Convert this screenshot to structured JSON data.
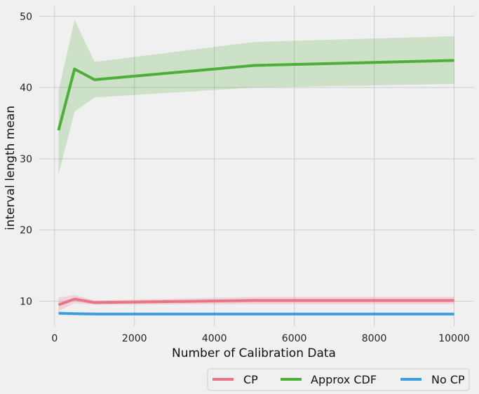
{
  "chart_data": {
    "type": "line",
    "title": "",
    "xlabel": "Number of Calibration Data",
    "ylabel": "interval length mean",
    "xlim": [
      -400,
      10500
    ],
    "ylim": [
      6.5,
      51.5
    ],
    "xticks": [
      0,
      2000,
      4000,
      6000,
      8000,
      10000
    ],
    "xtick_labels": [
      "0",
      "2000",
      "4000",
      "6000",
      "8000",
      "10000"
    ],
    "yticks": [
      10,
      20,
      30,
      40,
      50
    ],
    "ytick_labels": [
      "10",
      "20",
      "30",
      "40",
      "50"
    ],
    "grid": true,
    "legend_position": "bottom-right, outside plot",
    "x": [
      100,
      500,
      1000,
      5000,
      10000
    ],
    "series": [
      {
        "name": "CP",
        "color": "#e8748a",
        "values": [
          9.5,
          10.3,
          9.8,
          10.1,
          10.1
        ],
        "lower": [
          8.6,
          9.7,
          9.5,
          9.6,
          9.6
        ],
        "upper": [
          10.5,
          10.9,
          10.1,
          10.6,
          10.6
        ]
      },
      {
        "name": "Approx CDF",
        "color": "#4daf3a",
        "values": [
          34.0,
          42.6,
          41.1,
          43.1,
          43.8
        ],
        "lower": [
          27.8,
          36.6,
          38.6,
          40.0,
          40.5
        ],
        "upper": [
          39.5,
          49.5,
          43.6,
          46.4,
          47.2
        ]
      },
      {
        "name": "No CP",
        "color": "#3d9fde",
        "values": [
          8.3,
          8.25,
          8.2,
          8.2,
          8.2
        ],
        "lower": [
          8.2,
          8.15,
          8.1,
          8.1,
          8.1
        ],
        "upper": [
          8.4,
          8.35,
          8.3,
          8.3,
          8.3
        ]
      }
    ]
  }
}
